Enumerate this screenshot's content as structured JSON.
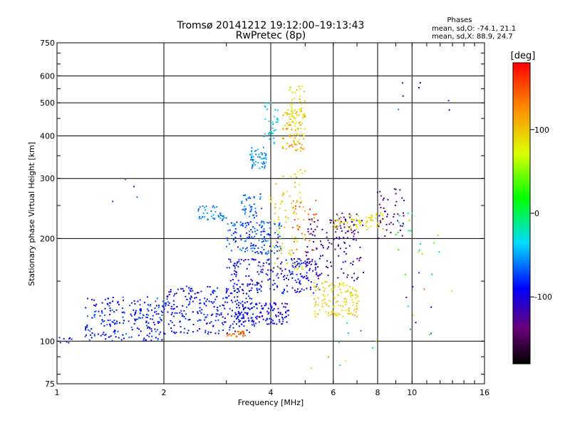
{
  "chart_data": {
    "type": "scatter",
    "title": "Tromsø 20141212 19:12:00–19:13:43",
    "subtitle": "RwPretec (8p)",
    "xlabel": "Frequency [MHz]",
    "ylabel": "Stationary phase Virtual Height [km]",
    "x_scale": "log",
    "y_scale": "log",
    "xlim": [
      1,
      16
    ],
    "ylim": [
      75,
      750
    ],
    "x_ticks": [
      1,
      2,
      4,
      6,
      8,
      10,
      16
    ],
    "y_ticks": [
      75,
      100,
      200,
      300,
      400,
      500,
      600,
      750
    ],
    "grid": true,
    "stats": {
      "header": "Phases",
      "line1": "mean, sd,O: -74.1, 21.1",
      "line2": "mean, sd,X:  88.9, 24.7"
    },
    "colorbar": {
      "label": "[deg]",
      "min": -180,
      "max": 180,
      "ticks": [
        100,
        0,
        -100
      ],
      "scale": "rainbow (black-purple-blue-cyan-green-yellow-red)"
    },
    "clusters": [
      {
        "f": [
          1.0,
          1.1
        ],
        "h": [
          98,
          103
        ],
        "phase": [
          -95,
          -75
        ],
        "n": 8
      },
      {
        "f": [
          1.2,
          2.0
        ],
        "h": [
          100,
          135
        ],
        "phase": [
          -110,
          -60
        ],
        "n": 220
      },
      {
        "f": [
          2.0,
          3.6
        ],
        "h": [
          105,
          145
        ],
        "phase": [
          -105,
          -70
        ],
        "n": 260
      },
      {
        "f": [
          3.2,
          4.5
        ],
        "h": [
          112,
          130
        ],
        "phase": [
          -110,
          -75
        ],
        "n": 130
      },
      {
        "f": [
          3.0,
          3.4
        ],
        "h": [
          103,
          107
        ],
        "phase": [
          130,
          150
        ],
        "n": 25
      },
      {
        "f": [
          3.0,
          5.5
        ],
        "h": [
          138,
          175
        ],
        "phase": [
          -115,
          -70
        ],
        "n": 220
      },
      {
        "f": [
          3.0,
          4.3
        ],
        "h": [
          180,
          225
        ],
        "phase": [
          -90,
          -50
        ],
        "n": 150
      },
      {
        "f": [
          2.5,
          3.0
        ],
        "h": [
          225,
          250
        ],
        "phase": [
          -70,
          -45
        ],
        "n": 40
      },
      {
        "f": [
          3.3,
          3.8
        ],
        "h": [
          230,
          270
        ],
        "phase": [
          -80,
          -50
        ],
        "n": 40
      },
      {
        "f": [
          3.5,
          3.9
        ],
        "h": [
          320,
          370
        ],
        "phase": [
          -70,
          -40
        ],
        "n": 50
      },
      {
        "f": [
          3.8,
          4.2
        ],
        "h": [
          380,
          500
        ],
        "phase": [
          -50,
          -20
        ],
        "n": 35
      },
      {
        "f": [
          4.3,
          5.0
        ],
        "h": [
          360,
          480
        ],
        "phase": [
          60,
          140
        ],
        "n": 90
      },
      {
        "f": [
          4.5,
          5.0
        ],
        "h": [
          450,
          560
        ],
        "phase": [
          75,
          105
        ],
        "n": 40
      },
      {
        "f": [
          4.0,
          5.0
        ],
        "h": [
          160,
          330
        ],
        "phase": [
          75,
          110
        ],
        "n": 90
      },
      {
        "f": [
          4.6,
          5.4
        ],
        "h": [
          180,
          260
        ],
        "phase": [
          120,
          170
        ],
        "n": 30
      },
      {
        "f": [
          5.3,
          7.1
        ],
        "h": [
          118,
          150
        ],
        "phase": [
          75,
          110
        ],
        "n": 130
      },
      {
        "f": [
          5.0,
          7.3
        ],
        "h": [
          150,
          230
        ],
        "phase": [
          -140,
          -100
        ],
        "n": 110
      },
      {
        "f": [
          6.0,
          7.0
        ],
        "h": [
          200,
          240
        ],
        "phase": [
          -140,
          -110
        ],
        "n": 40
      },
      {
        "f": [
          6.0,
          7.2
        ],
        "h": [
          212,
          235
        ],
        "phase": [
          80,
          100
        ],
        "n": 40
      },
      {
        "f": [
          7.4,
          8.3
        ],
        "h": [
          210,
          240
        ],
        "phase": [
          75,
          100
        ],
        "n": 30
      },
      {
        "f": [
          8.0,
          9.5
        ],
        "h": [
          200,
          280
        ],
        "phase": [
          -150,
          -110
        ],
        "n": 45
      },
      {
        "f": [
          9.0,
          12.0
        ],
        "h": [
          180,
          240
        ],
        "phase": [
          -40,
          60
        ],
        "n": 18
      },
      {
        "f": [
          9.5,
          13.0
        ],
        "h": [
          100,
          160
        ],
        "phase": [
          -110,
          150
        ],
        "n": 14
      },
      {
        "f": [
          9.0,
          14.0
        ],
        "h": [
          430,
          580
        ],
        "phase": [
          -110,
          -50
        ],
        "n": 7
      },
      {
        "f": [
          1.3,
          1.9
        ],
        "h": [
          235,
          305
        ],
        "phase": [
          -90,
          -60
        ],
        "n": 4
      },
      {
        "f": [
          5.0,
          8.0
        ],
        "h": [
          80,
          115
        ],
        "phase": [
          -120,
          130
        ],
        "n": 10
      }
    ]
  }
}
